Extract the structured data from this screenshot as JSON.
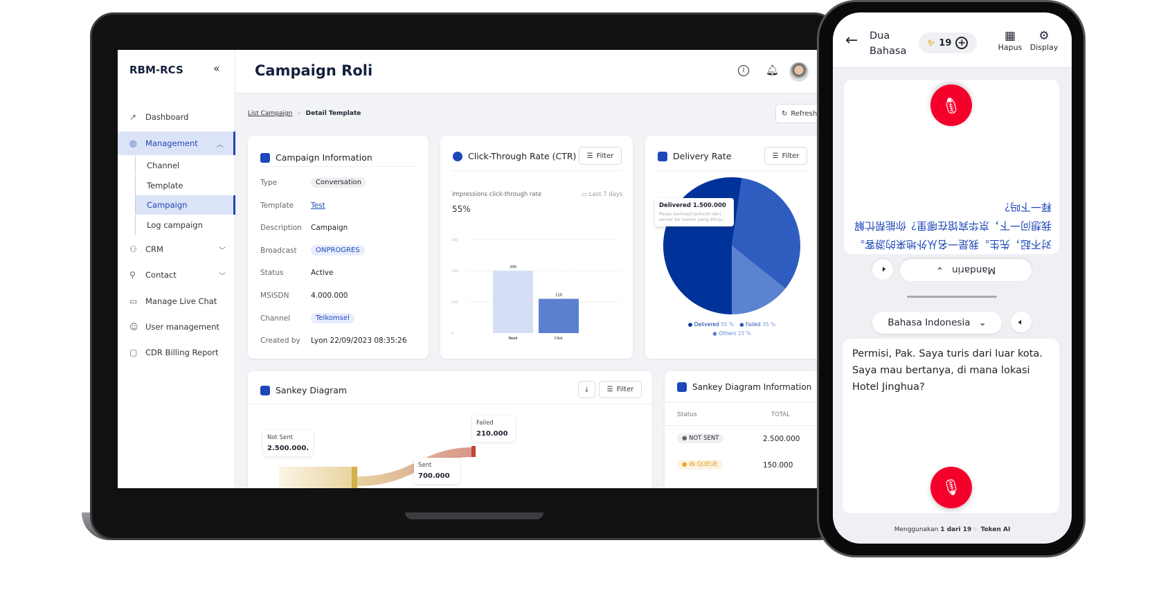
{
  "app": {
    "logo": "RBM-RCS",
    "collapse_icon": "«",
    "page_title": "Campaign Roli"
  },
  "sidebar": {
    "items": [
      {
        "label": "Dashboard",
        "icon": "chart-icon"
      },
      {
        "label": "Management",
        "icon": "target-icon",
        "expanded": true
      },
      {
        "label": "CRM",
        "icon": "users-icon"
      },
      {
        "label": "Contact",
        "icon": "user-add-icon"
      },
      {
        "label": "Manage Live Chat",
        "icon": "chat-icon"
      },
      {
        "label": "User management",
        "icon": "user-icon"
      },
      {
        "label": "CDR Billing Report",
        "icon": "folder-icon"
      }
    ],
    "sub_items": [
      "Channel",
      "Template",
      "Campaign",
      "Log campaign"
    ],
    "active_sub": "Campaign"
  },
  "breadcrumb": {
    "parent": "List Campaign",
    "current": "Detail Template"
  },
  "refresh_label": "Refresh",
  "campaign_info": {
    "title": "Campaign Information",
    "rows": [
      {
        "label": "Type",
        "value": "Conversation"
      },
      {
        "label": "Template",
        "value": "Test"
      },
      {
        "label": "Description",
        "value": "Campaign"
      },
      {
        "label": "Broadcast",
        "value": "ONPROGRES"
      },
      {
        "label": "Status",
        "value": "Active"
      },
      {
        "label": "MSISDN",
        "value": "4.000.000"
      },
      {
        "label": "Channel",
        "value": "Telkomsel"
      },
      {
        "label": "Created by",
        "value": "Lyon  22/09/2023 08:35:26"
      }
    ]
  },
  "filter_label": "Filter",
  "chart_data": [
    {
      "type": "bar",
      "title": "Click-Through Rate (CTR)",
      "subtitle": "Impressions click-through rate",
      "date_range": "Last 7 days",
      "headline": "55%",
      "categories": [
        "Read",
        "Click"
      ],
      "values": [
        200,
        110
      ],
      "yticks": [
        0,
        100,
        200,
        300
      ],
      "ylim": [
        0,
        300
      ],
      "grid": true,
      "colors": [
        "#d4dff6",
        "#5a80cf"
      ]
    },
    {
      "type": "pie",
      "title": "Delivery Rate",
      "categories": [
        "Delivered",
        "Failed",
        "Others"
      ],
      "values": [
        55,
        35,
        15
      ],
      "colors": [
        "#00339a",
        "#2f5dbf",
        "#5b83d0"
      ],
      "legend": "bottom",
      "tooltip": {
        "title": "Delivered 1.500.000",
        "text": "Pesan berhasil terkirim dari server ke nomor yang dituju"
      }
    }
  ],
  "sankey": {
    "title": "Sankey Diagram",
    "nodes": [
      {
        "label": "Not Sent",
        "value": "2.500.000."
      },
      {
        "label": "Failed",
        "value": "210.000"
      },
      {
        "label": "Sent",
        "value": "700.000"
      }
    ]
  },
  "sankey_info": {
    "title": "Sankey Diagram Information",
    "col_status": "Status",
    "col_total": "TOTAL",
    "rows": [
      {
        "status": "NOT SENT",
        "total": "2.500.000",
        "color": "#666"
      },
      {
        "status": "IN QUEUE",
        "total": "150.000",
        "color": "#f0a020"
      }
    ]
  },
  "phone": {
    "title": "Dua Bahasa",
    "tokens": "19",
    "hapus": "Hapus",
    "display": "Display",
    "translated_text": "对不起，先生。我是一名从外地来的游客。我想问一下，京华宾馆在哪里？你能帮忙解释一下吗？",
    "target_lang": "Mandarin",
    "source_lang": "Bahasa Indonesia",
    "source_text": "Permisi, Pak. Saya turis dari luar kota. Saya mau bertanya, di mana lokasi Hotel Jinghua?",
    "footer_prefix": "Menggunakan",
    "footer_count": "1 dari 19",
    "footer_suffix": "Token AI"
  }
}
